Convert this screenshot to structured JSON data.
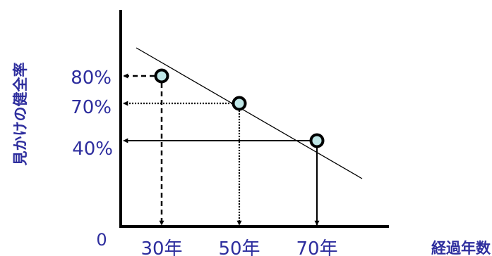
{
  "chart_data": {
    "type": "scatter",
    "ylabel": "見かけの健全率",
    "xlabel": "経過年数",
    "origin_label": "0",
    "x_tick_labels": [
      "30年",
      "50年",
      "70年"
    ],
    "y_tick_labels": [
      "80%",
      "70%",
      "40%"
    ],
    "points": [
      {
        "x": 30,
        "y": 80,
        "x_label": "30年",
        "y_label": "80%",
        "line_style": "dashed"
      },
      {
        "x": 50,
        "y": 70,
        "x_label": "50年",
        "y_label": "70%",
        "line_style": "dotted"
      },
      {
        "x": 70,
        "y": 40,
        "x_label": "70年",
        "y_label": "40%",
        "line_style": "solid"
      }
    ],
    "trend_line": {
      "x": [
        23,
        79
      ],
      "y": [
        93,
        17
      ]
    },
    "colors": {
      "marker_fill": "#bfe6e6",
      "marker_stroke": "#000000",
      "text": "#2e2e9e"
    }
  }
}
